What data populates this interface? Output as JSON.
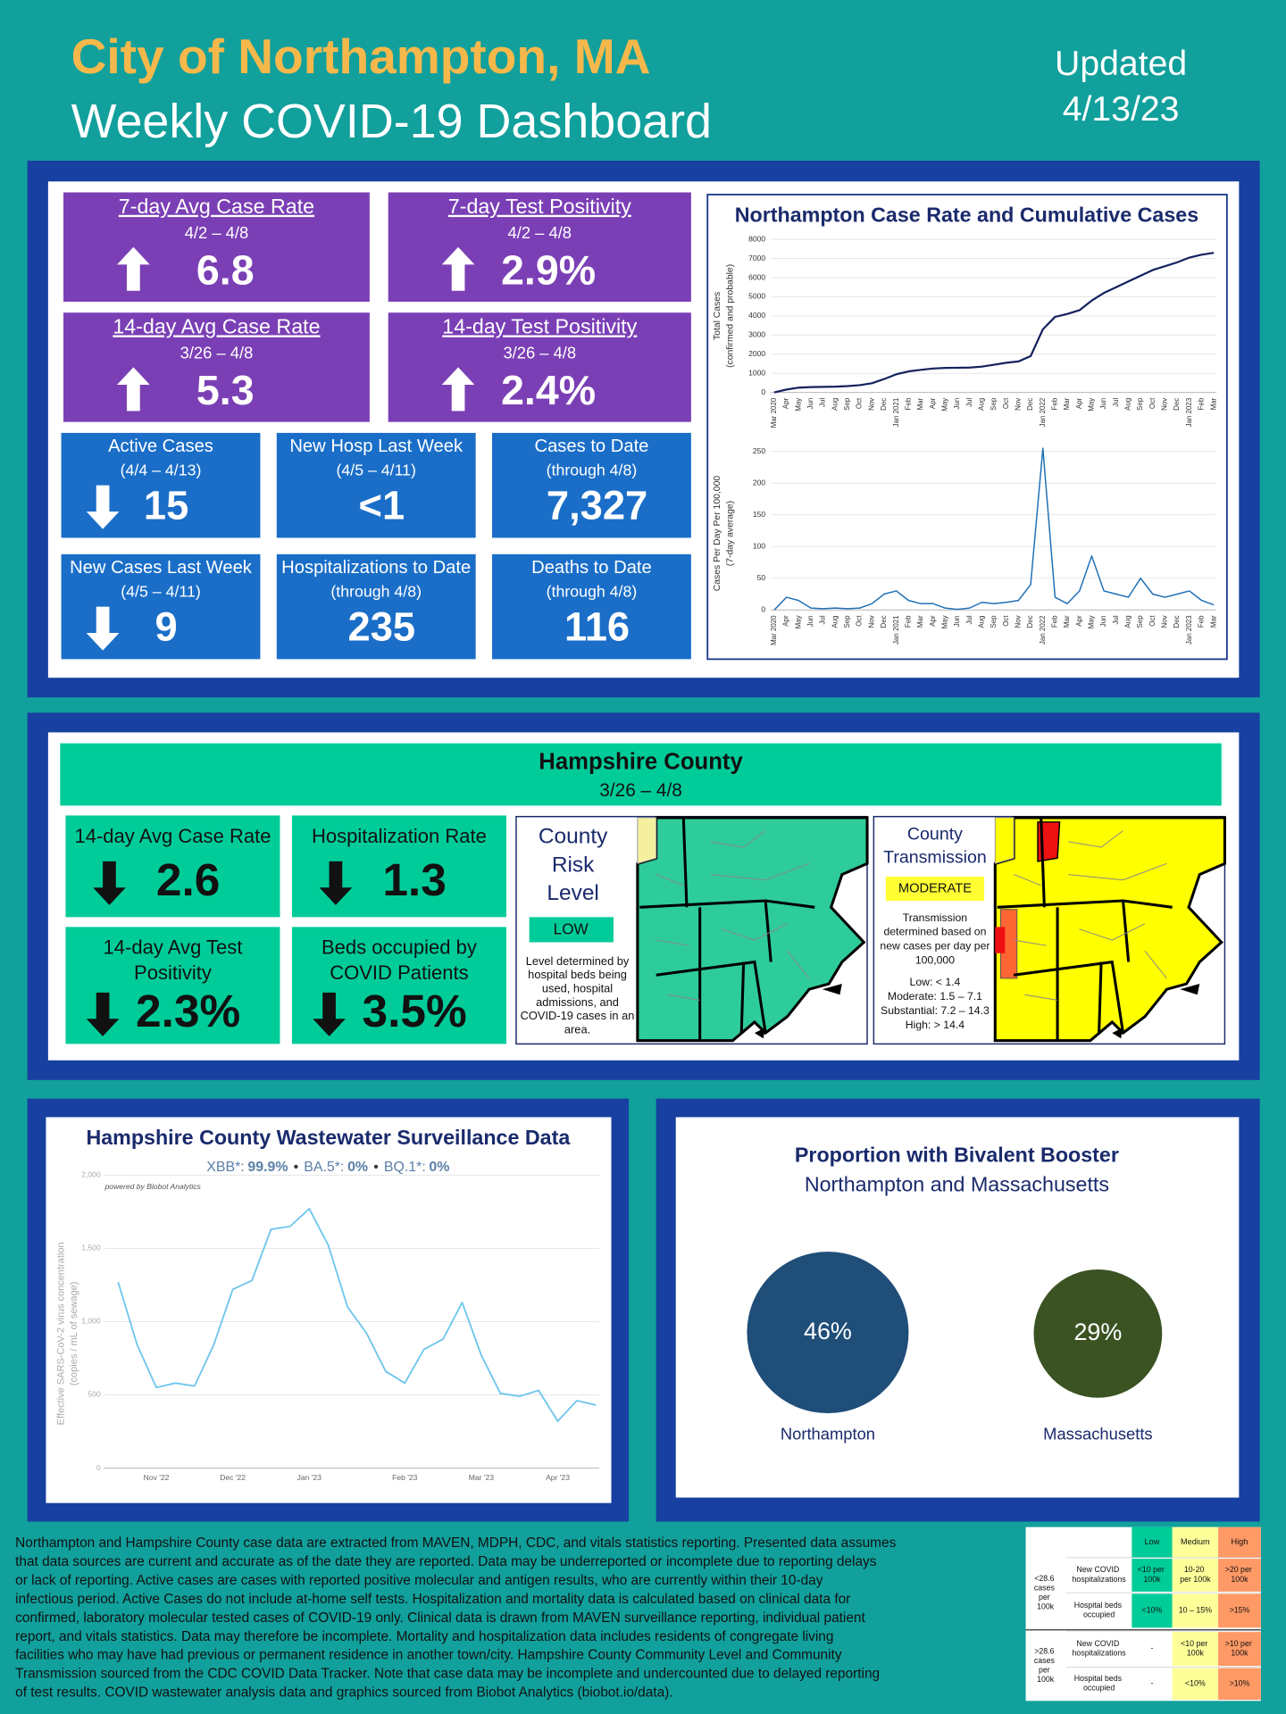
{
  "header": {
    "title": "City of Northampton, MA",
    "subtitle": "Weekly COVID-19 Dashboard",
    "updated": [
      "Updated",
      "4/13/23"
    ]
  },
  "city_metrics": [
    {
      "title": "7-day Avg Case Rate",
      "period": "4/2 – 4/8",
      "value": "6.8"
    },
    {
      "title": "7-day Test Positivity",
      "period": "4/2 – 4/8",
      "value": "2.9%"
    },
    {
      "title": "14-day Avg Case Rate",
      "period": "3/26 – 4/8",
      "value": "5.3"
    },
    {
      "title": "14-day Test Positivity",
      "period": "3/26 – 4/8",
      "value": "2.4%"
    }
  ],
  "city_counts": [
    {
      "title": "Active Cases",
      "period": "(4/4 – 4/13)",
      "value": "15"
    },
    {
      "title": "New Hosp Last Week",
      "period": "(4/5 – 4/11)",
      "value": "<1"
    },
    {
      "title": "Cases to Date",
      "period": "(through 4/8)",
      "value": "7,327"
    },
    {
      "title": "New Cases Last Week",
      "period": "(4/5 – 4/11)",
      "value": "9"
    },
    {
      "title": "Hospitalizations to Date",
      "period": "(through 4/8)",
      "value": "235"
    },
    {
      "title": "Deaths to Date",
      "period": "(through 4/8)",
      "value": "116"
    }
  ],
  "county": {
    "title": "Hampshire County",
    "period": "3/26 – 4/8",
    "metrics": [
      {
        "title": [
          "14-day Avg Case Rate"
        ],
        "value": "2.6"
      },
      {
        "title": [
          "Hospitalization Rate"
        ],
        "value": "1.3"
      },
      {
        "title": [
          "14-day Avg Test",
          "Positivity"
        ],
        "value": "2.3%"
      },
      {
        "title": [
          "Beds occupied by",
          "COVID Patients"
        ],
        "value": "3.5%"
      }
    ],
    "risk": {
      "title": [
        "County",
        "Risk",
        "Level"
      ],
      "level": "LOW",
      "note": [
        "Level determined by",
        "hospital beds being",
        "used, hospital",
        "admissions, and",
        "COVID-19 cases in an",
        "area."
      ]
    },
    "transmission": {
      "title": [
        "County",
        "Transmission"
      ],
      "level": "MODERATE",
      "note": [
        "Transmission",
        "determined based on",
        "new cases per day per",
        "100,000"
      ],
      "thresholds": [
        "Low: < 1.4",
        "Moderate: 1.5 – 7.1",
        "Substantial: 7.2 – 14.3",
        "High: > 14.4"
      ]
    }
  },
  "chart_data": [
    {
      "type": "line",
      "title": "Northampton Case Rate and Cumulative Cases",
      "y_label": [
        "Total Cases",
        "(confirmed and probable)"
      ],
      "categories": [
        "Mar 2020",
        "Apr",
        "May",
        "Jun",
        "Jul",
        "Aug",
        "Sep",
        "Oct",
        "Nov",
        "Dec",
        "Jan 2021",
        "Feb",
        "Mar",
        "Apr",
        "May",
        "Jun",
        "Jul",
        "Aug",
        "Sep",
        "Oct",
        "Nov",
        "Dec",
        "Jan 2022",
        "Feb",
        "Mar",
        "Apr",
        "May",
        "Jun",
        "Jul",
        "Aug",
        "Sep",
        "Oct",
        "Nov",
        "Dec",
        "Jan 2023",
        "Feb",
        "Mar"
      ],
      "values": [
        0,
        150,
        250,
        280,
        290,
        300,
        330,
        380,
        480,
        700,
        950,
        1100,
        1180,
        1250,
        1280,
        1290,
        1300,
        1350,
        1450,
        1550,
        1620,
        1900,
        3300,
        3950,
        4100,
        4300,
        4800,
        5200,
        5500,
        5800,
        6100,
        6400,
        6600,
        6800,
        7050,
        7200,
        7300
      ],
      "color": "#14215e",
      "ylim": [
        0,
        8000
      ],
      "yticks": [
        0,
        1000,
        2000,
        3000,
        4000,
        5000,
        6000,
        7000,
        8000
      ],
      "grid": true
    },
    {
      "type": "line",
      "y_label": [
        "Cases Per Day Per 100,000",
        "(7-day average)"
      ],
      "categories": [
        "Mar 2020",
        "Apr",
        "May",
        "Jun",
        "Jul",
        "Aug",
        "Sep",
        "Oct",
        "Nov",
        "Dec",
        "Jan 2021",
        "Feb",
        "Mar",
        "Apr",
        "May",
        "Jun",
        "Jul",
        "Aug",
        "Sep",
        "Oct",
        "Nov",
        "Dec",
        "Jan 2022",
        "Feb",
        "Mar",
        "Apr",
        "May",
        "Jun",
        "Jul",
        "Aug",
        "Sep",
        "Oct",
        "Nov",
        "Dec",
        "Jan 2023",
        "Feb",
        "Mar"
      ],
      "values": [
        0,
        20,
        15,
        3,
        2,
        3,
        2,
        3,
        10,
        25,
        30,
        15,
        10,
        10,
        3,
        1,
        3,
        12,
        10,
        12,
        15,
        40,
        255,
        20,
        10,
        30,
        85,
        30,
        25,
        20,
        50,
        25,
        20,
        25,
        30,
        15,
        8
      ],
      "color": "#1e6fb5",
      "ylim": [
        0,
        260
      ],
      "yticks": [
        0,
        50,
        100,
        150,
        200,
        250
      ],
      "grid": true
    },
    {
      "type": "line",
      "title": "Hampshire County Wastewater Surveillance Data",
      "variants": [
        {
          "name": "XBB*:",
          "share": "99.9%"
        },
        {
          "name": "BA.5*:",
          "share": "0%"
        },
        {
          "name": "BQ.1*:",
          "share": "0%"
        }
      ],
      "separator": "•",
      "annotation": "powered by Biobot Analytics",
      "y_label": [
        "Effective SARS-CoV-2 virus concentration",
        "(copies / mL of sewage)"
      ],
      "categories": [
        null,
        null,
        "Nov '22",
        null,
        null,
        null,
        "Dec '22",
        null,
        null,
        null,
        "Jan '23",
        null,
        null,
        null,
        null,
        "Feb '23",
        null,
        null,
        null,
        "Mar '23",
        null,
        null,
        null,
        "Apr '23",
        null,
        null
      ],
      "values": [
        1270,
        840,
        550,
        580,
        560,
        840,
        1220,
        1280,
        1630,
        1650,
        1770,
        1520,
        1100,
        920,
        660,
        580,
        810,
        880,
        1130,
        770,
        510,
        490,
        530,
        320,
        460,
        430
      ],
      "color": "#6ec6ec",
      "ylim": [
        0,
        2000
      ],
      "yticks": [
        0,
        500,
        {
          "value": 1000,
          "label": "1,000"
        },
        {
          "value": 1500,
          "label": "1,500"
        },
        {
          "value": 2000,
          "label": "2,000"
        }
      ],
      "grid": true
    },
    {
      "type": "bubble",
      "title": "Proportion with Bivalent Booster",
      "subtitle": "Northampton and Massachusetts",
      "categories": [
        "Northampton",
        "Massachusetts"
      ],
      "values": [
        46,
        29
      ],
      "value_labels": [
        "46%",
        "29%"
      ],
      "colors": [
        "#1f4e79",
        "#3b5323"
      ]
    }
  ],
  "footer": {
    "lines": [
      "Northampton and Hampshire County case data are extracted from MAVEN, MDPH, CDC, and vitals statistics reporting. Presented data assumes",
      "that data sources are current and accurate as of the date they are reported. Data may be underreported or incomplete due to reporting delays",
      "or lack of reporting. Active cases are cases with reported positive molecular and antigen results, who are currently within their 10-day",
      "infectious period. Active Cases do not include at-home self tests. Hospitalization and mortality data is calculated based on clinical data for",
      "confirmed, laboratory molecular tested cases of COVID-19 only. Clinical data is drawn from MAVEN surveillance reporting, individual patient",
      "report, and vitals statistics. Data may therefore be incomplete. Mortality and hospitalization data includes residents of congregate living",
      "facilities who may have had previous or permanent residence in another town/city. Hampshire County Community Level and Community",
      "Transmission sourced from the CDC COVID Data Tracker. Note that case data may be incomplete and undercounted due to delayed reporting",
      "of test results. COVID wastewater analysis data and graphics sourced from Biobot Analytics (biobot.io/data)."
    ]
  },
  "levels_table": {
    "columns": [
      "Low",
      "Medium",
      "High"
    ],
    "groups": [
      {
        "label": "<28.6 cases per 100k",
        "rows": [
          {
            "label": "New COVID hospitalizations",
            "cells": [
              "<10 per 100k",
              "10-20 per 100k",
              ">20 per 100k"
            ]
          },
          {
            "label": "Hospital beds occupied",
            "cells": [
              "<10%",
              "10 – 15%",
              ">15%"
            ]
          }
        ]
      },
      {
        "label": ">28.6 cases per 100k",
        "rows": [
          {
            "label": "New COVID hospitalizations",
            "cells": [
              "-",
              "<10 per 100k",
              ">10 per 100k"
            ]
          },
          {
            "label": "Hospital beds occupied",
            "cells": [
              "-",
              "<10%",
              ">10%"
            ]
          }
        ]
      }
    ]
  }
}
